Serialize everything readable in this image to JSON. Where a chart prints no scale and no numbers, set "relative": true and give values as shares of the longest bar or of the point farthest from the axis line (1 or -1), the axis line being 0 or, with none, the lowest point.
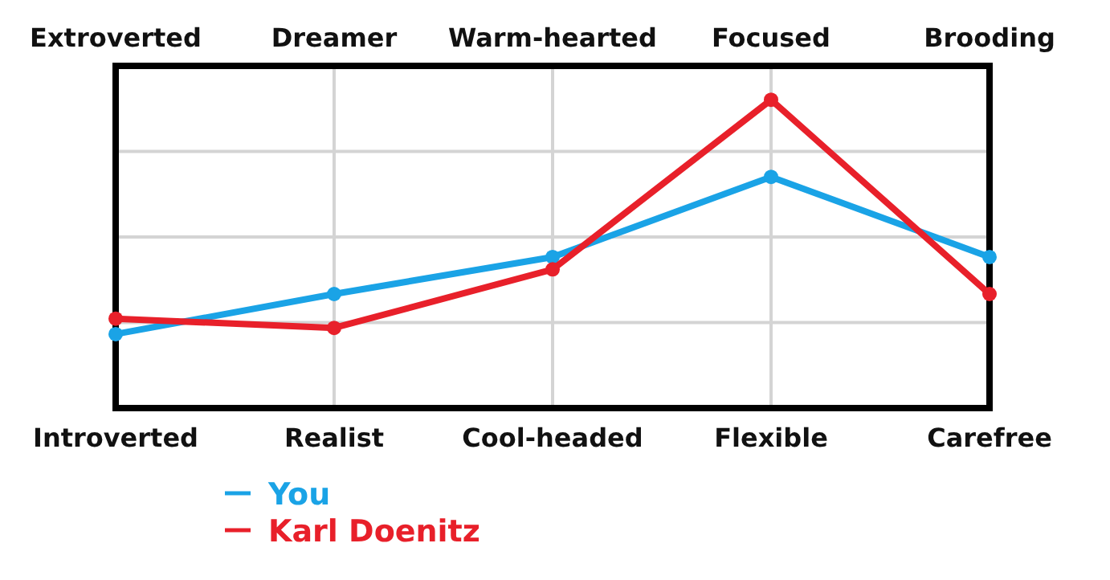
{
  "chart_data": {
    "type": "line",
    "relative": true,
    "categories": [
      "Introverted",
      "Realist",
      "Cool-headed",
      "Flexible",
      "Carefree"
    ],
    "annotations": [
      "Extroverted",
      "Dreamer",
      "Warm-hearted",
      "Focused",
      "Brooding"
    ],
    "series": [
      {
        "name": "You",
        "color": "#1aa3e6",
        "values": [
          0.24,
          0.37,
          0.49,
          0.75,
          0.49
        ]
      },
      {
        "name": "Karl Doenitz",
        "color": "#e8202a",
        "values": [
          0.29,
          0.26,
          0.45,
          1,
          0.37
        ]
      }
    ],
    "grid": true,
    "legend": "bottom left",
    "marker": "circle",
    "line_style": "solid"
  }
}
